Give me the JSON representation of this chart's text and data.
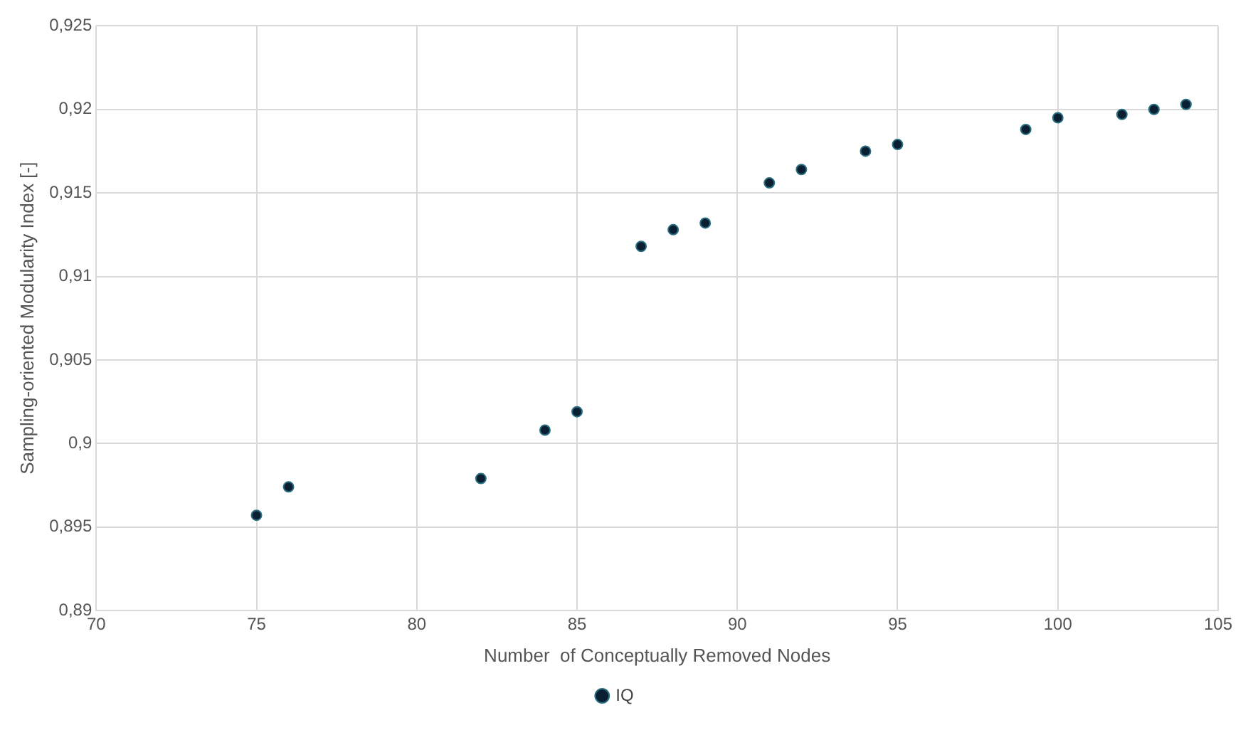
{
  "chart_data": {
    "type": "scatter",
    "xlabel": "Number  of Conceptually Removed Nodes",
    "ylabel": "Sampling-oriented Modularity Index [-]",
    "x": [
      75,
      76,
      82,
      84,
      85,
      87,
      88,
      89,
      91,
      92,
      94,
      95,
      99,
      100,
      102,
      103,
      104
    ],
    "series": [
      {
        "name": "IQ",
        "color": "#0b1f33",
        "values": [
          0.8957,
          0.8974,
          0.8979,
          0.9008,
          0.9019,
          0.9118,
          0.9128,
          0.9132,
          0.9156,
          0.9164,
          0.9175,
          0.9179,
          0.9188,
          0.9195,
          0.9197,
          0.92,
          0.9203
        ]
      }
    ],
    "xlim": [
      70,
      105
    ],
    "xticks": [
      70,
      75,
      80,
      85,
      90,
      95,
      100,
      105
    ],
    "ylim": [
      0.89,
      0.925
    ],
    "yticks": [
      {
        "value": 0.89,
        "label": "0,89"
      },
      {
        "value": 0.895,
        "label": "0,895"
      },
      {
        "value": 0.9,
        "label": "0,9"
      },
      {
        "value": 0.905,
        "label": "0,905"
      },
      {
        "value": 0.91,
        "label": "0,91"
      },
      {
        "value": 0.915,
        "label": "0,915"
      },
      {
        "value": 0.92,
        "label": "0,92"
      },
      {
        "value": 0.925,
        "label": "0,925"
      }
    ],
    "grid": true,
    "legend": "bottom",
    "marker": "circle"
  }
}
